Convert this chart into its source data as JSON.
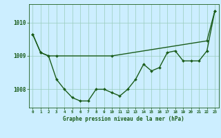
{
  "line1_x": [
    0,
    1,
    2,
    3,
    4,
    5,
    6,
    7,
    8,
    9,
    10,
    11,
    12,
    13,
    14,
    15,
    16,
    17,
    18,
    19,
    20,
    21,
    22,
    23
  ],
  "line1_y": [
    1009.65,
    1009.1,
    1009.0,
    1008.3,
    1008.0,
    1007.75,
    1007.65,
    1007.65,
    1008.0,
    1008.0,
    1007.9,
    1007.8,
    1008.0,
    1008.3,
    1008.75,
    1008.55,
    1008.65,
    1009.1,
    1009.15,
    1008.85,
    1008.85,
    1008.85,
    1009.15,
    1010.35
  ],
  "line2_x": [
    0,
    1,
    2,
    3,
    10,
    22,
    23
  ],
  "line2_y": [
    1009.65,
    1009.1,
    1009.0,
    1009.0,
    1009.0,
    1009.45,
    1010.35
  ],
  "color": "#1a5c1a",
  "bg_color": "#cceeff",
  "grid_color": "#99ccbb",
  "xlabel": "Graphe pression niveau de la mer (hPa)",
  "xlim": [
    -0.5,
    23.5
  ],
  "ylim": [
    1007.45,
    1010.55
  ],
  "yticks": [
    1008,
    1009,
    1010
  ],
  "xticks": [
    0,
    1,
    2,
    3,
    4,
    5,
    6,
    7,
    8,
    9,
    10,
    11,
    12,
    13,
    14,
    15,
    16,
    17,
    18,
    19,
    20,
    21,
    22,
    23
  ],
  "marker": "D",
  "markersize": 2.0,
  "linewidth": 1.0
}
